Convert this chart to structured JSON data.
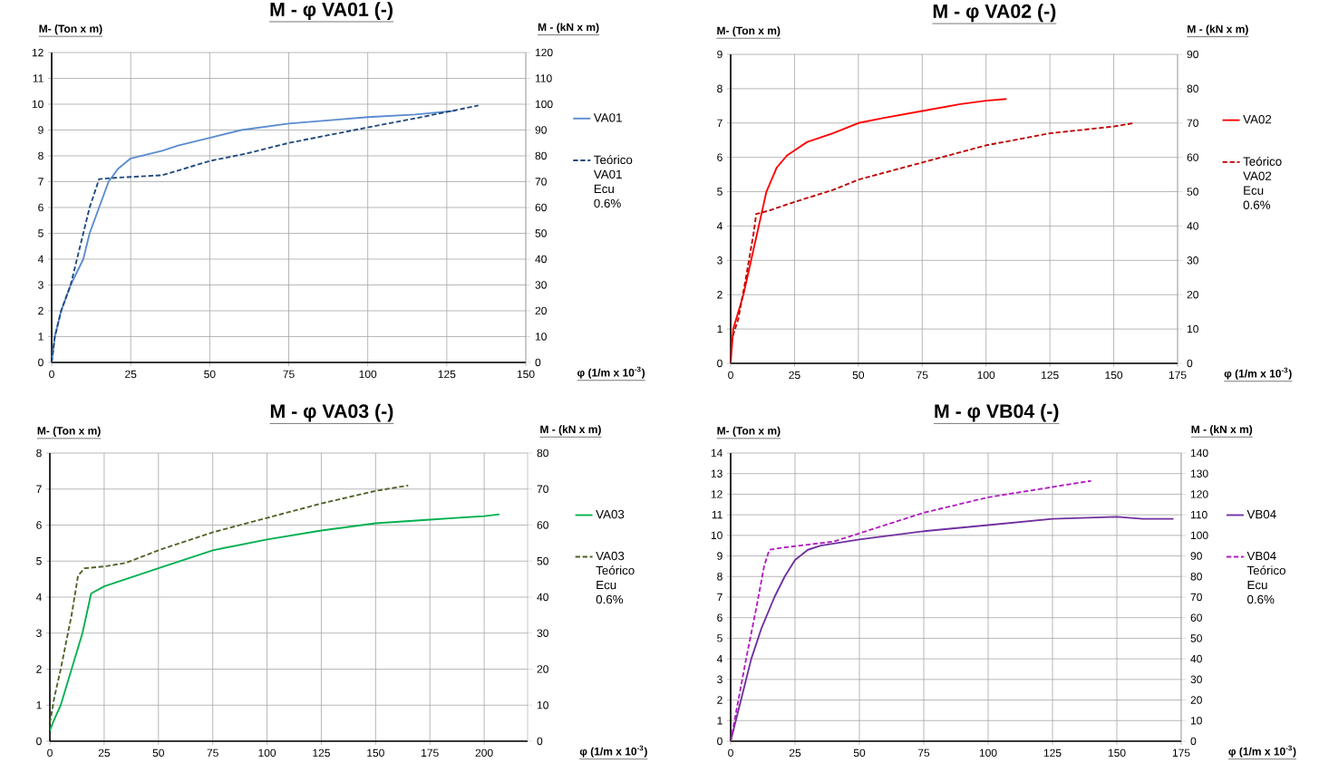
{
  "chart_data": [
    {
      "type": "line",
      "title": "**M - φ VA01 (-)**",
      "xlabel": "φ (1/m x 10$^{-3}$)",
      "ylabel": "M- (Ton  x m)",
      "y2label": "M - (kN x m)",
      "xlim": [
        0,
        150
      ],
      "xticks": [
        0,
        25,
        50,
        75,
        100,
        125,
        150
      ],
      "ylim": [
        0,
        12
      ],
      "yticks": [
        0,
        1,
        2,
        3,
        4,
        5,
        6,
        7,
        8,
        9,
        10,
        11,
        12
      ],
      "y2lim": [
        0,
        120
      ],
      "y2ticks": [
        0,
        10,
        20,
        30,
        40,
        50,
        60,
        70,
        80,
        90,
        100,
        110,
        120
      ],
      "grid": true,
      "legend": "right",
      "series": [
        {
          "name": "VA01",
          "color": "#5b8bd0",
          "line_style": "solid",
          "x": [
            0,
            1,
            3,
            6,
            10,
            12,
            15,
            18,
            21,
            25,
            30,
            35,
            40,
            50,
            60,
            75,
            90,
            100,
            115,
            128
          ],
          "values": [
            0,
            1,
            2,
            3,
            4,
            5,
            6,
            7,
            7.5,
            7.9,
            8.05,
            8.2,
            8.4,
            8.7,
            9.0,
            9.25,
            9.4,
            9.5,
            9.6,
            9.75
          ]
        },
        {
          "name": "Teórico VA01 Ecu 0.6%",
          "color": "#1f497d",
          "line_style": "dashed",
          "x": [
            0,
            1,
            3,
            6,
            9,
            12,
            15,
            20,
            35,
            50,
            62,
            75,
            100,
            115,
            125,
            135
          ],
          "values": [
            0,
            1,
            2,
            3,
            4.5,
            6,
            7.1,
            7.15,
            7.25,
            7.8,
            8.1,
            8.5,
            9.1,
            9.45,
            9.7,
            9.95
          ]
        }
      ]
    },
    {
      "type": "line",
      "title": "**M - φ VA02 (-)**",
      "xlabel": "φ (1/m x 10$^{-3}$)",
      "ylabel": "M- (Ton  x m)",
      "y2label": "M - (kN x m)",
      "xlim": [
        0,
        175
      ],
      "xticks": [
        0,
        25,
        50,
        75,
        100,
        125,
        150,
        175
      ],
      "ylim": [
        0,
        9
      ],
      "yticks": [
        0,
        1,
        2,
        3,
        4,
        5,
        6,
        7,
        8,
        9
      ],
      "y2lim": [
        0,
        90
      ],
      "y2ticks": [
        0,
        10,
        20,
        30,
        40,
        50,
        60,
        70,
        80,
        90
      ],
      "grid": true,
      "legend": "right",
      "series": [
        {
          "name": "VA02",
          "color": "#ff0000",
          "line_style": "solid",
          "x": [
            0,
            1,
            5,
            8,
            11,
            14,
            18,
            22,
            25,
            30,
            40,
            50,
            60,
            75,
            90,
            100,
            108
          ],
          "values": [
            0,
            1,
            2,
            3,
            4,
            5,
            5.7,
            6.05,
            6.2,
            6.45,
            6.7,
            7.0,
            7.15,
            7.35,
            7.55,
            7.65,
            7.7
          ]
        },
        {
          "name": "Teórico VA02 Ecu 0.6%",
          "color": "#c00000",
          "line_style": "dashed",
          "x": [
            0,
            3,
            6,
            9,
            10,
            15,
            25,
            40,
            50,
            75,
            100,
            125,
            150,
            158
          ],
          "values": [
            0.6,
            1.3,
            2.5,
            3.8,
            4.35,
            4.45,
            4.7,
            5.05,
            5.35,
            5.85,
            6.35,
            6.7,
            6.9,
            7.0
          ]
        }
      ]
    },
    {
      "type": "line",
      "title": "**M - φ VA03 (-)**",
      "xlabel": "φ (1/m x 10$^{-3}$)",
      "ylabel": "M- (Ton  x m)",
      "y2label": "M - (kN x m)",
      "xlim": [
        0,
        220
      ],
      "xticks": [
        0,
        25,
        50,
        75,
        100,
        125,
        150,
        175,
        200
      ],
      "ylim": [
        0,
        8
      ],
      "yticks": [
        0,
        1,
        2,
        3,
        4,
        5,
        6,
        7,
        8
      ],
      "y2lim": [
        0,
        80
      ],
      "y2ticks": [
        0,
        10,
        20,
        30,
        40,
        50,
        60,
        70,
        80
      ],
      "grid": true,
      "legend": "right",
      "series": [
        {
          "name": "VA03",
          "color": "#00b050",
          "line_style": "solid",
          "x": [
            0,
            2,
            5,
            10,
            15,
            19,
            25,
            35,
            50,
            75,
            100,
            125,
            150,
            175,
            200,
            207
          ],
          "values": [
            0.3,
            0.6,
            1,
            2,
            3,
            4.1,
            4.3,
            4.5,
            4.8,
            5.3,
            5.6,
            5.85,
            6.05,
            6.15,
            6.25,
            6.3
          ]
        },
        {
          "name": "VA03 Teórico Ecu 0.6%",
          "color": "#4f6228",
          "line_style": "dashed",
          "x": [
            0,
            2,
            5,
            10,
            13,
            16,
            25,
            35,
            50,
            75,
            100,
            125,
            150,
            165
          ],
          "values": [
            0.5,
            1.2,
            2,
            3.5,
            4.6,
            4.8,
            4.85,
            4.95,
            5.3,
            5.8,
            6.2,
            6.6,
            6.95,
            7.1
          ]
        }
      ]
    },
    {
      "type": "line",
      "title": "**M - φ VB04 (-)**",
      "xlabel": "φ (1/m x 10$^{-3}$)",
      "ylabel": "M- (Ton  x m)",
      "y2label": "M - (kN x m)",
      "xlim": [
        0,
        175
      ],
      "xticks": [
        0,
        25,
        50,
        75,
        100,
        125,
        150,
        175
      ],
      "ylim": [
        0,
        14
      ],
      "yticks": [
        0,
        1,
        2,
        3,
        4,
        5,
        6,
        7,
        8,
        9,
        10,
        11,
        12,
        13,
        14
      ],
      "y2lim": [
        0,
        140
      ],
      "y2ticks": [
        0,
        10,
        20,
        30,
        40,
        50,
        60,
        70,
        80,
        90,
        100,
        110,
        120,
        130,
        140
      ],
      "grid": true,
      "legend": "right",
      "series": [
        {
          "name": "VB04",
          "color": "#7030a0",
          "line_style": "solid",
          "x": [
            0,
            2,
            5,
            8,
            12,
            17,
            21,
            25,
            30,
            35,
            50,
            75,
            100,
            125,
            150,
            160,
            172
          ],
          "values": [
            0,
            1,
            2.5,
            4,
            5.5,
            7,
            8,
            8.8,
            9.3,
            9.5,
            9.8,
            10.2,
            10.5,
            10.8,
            10.9,
            10.8,
            10.8
          ]
        },
        {
          "name": "VB04 Teórico Ecu 0.6%",
          "color": "#b21cc0",
          "line_style": "dashed",
          "x": [
            0,
            3,
            6,
            10,
            13,
            15,
            20,
            30,
            40,
            50,
            75,
            100,
            125,
            140
          ],
          "values": [
            0,
            2,
            4,
            6.5,
            8.5,
            9.3,
            9.4,
            9.55,
            9.7,
            10.1,
            11.1,
            11.85,
            12.35,
            12.65
          ]
        }
      ]
    }
  ]
}
